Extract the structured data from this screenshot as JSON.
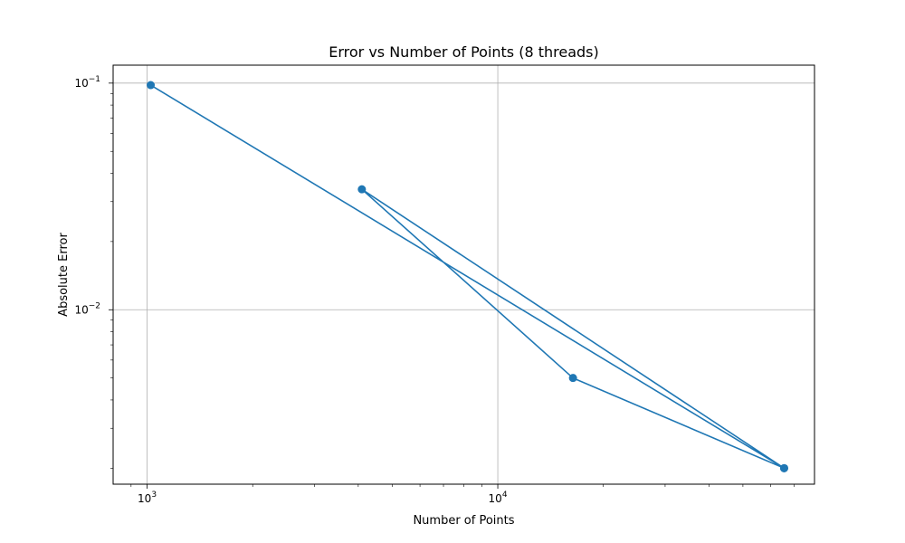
{
  "chart_data": {
    "type": "line",
    "title": "Error vs Number of Points (8 threads)",
    "xlabel": "Number of Points",
    "ylabel": "Absolute Error",
    "x_scale": "log",
    "y_scale": "log",
    "xlim": [
      800,
      80000
    ],
    "ylim": [
      0.0017,
      0.12
    ],
    "grid": true,
    "series": [
      {
        "color": "#1f77b4",
        "marker": "circle",
        "points": [
          {
            "x": 1024,
            "y": 0.098
          },
          {
            "x": 65536,
            "y": 0.002
          },
          {
            "x": 4096,
            "y": 0.034
          },
          {
            "x": 16384,
            "y": 0.005
          },
          {
            "x": 65536,
            "y": 0.002
          }
        ]
      }
    ],
    "x_ticks": [
      {
        "value": 1000,
        "base": "10",
        "exp": "3"
      },
      {
        "value": 10000,
        "base": "10",
        "exp": "4"
      }
    ],
    "y_ticks": [
      {
        "value": 0.1,
        "base": "10",
        "exp": "−1"
      },
      {
        "value": 0.01,
        "base": "10",
        "exp": "−2"
      }
    ]
  }
}
